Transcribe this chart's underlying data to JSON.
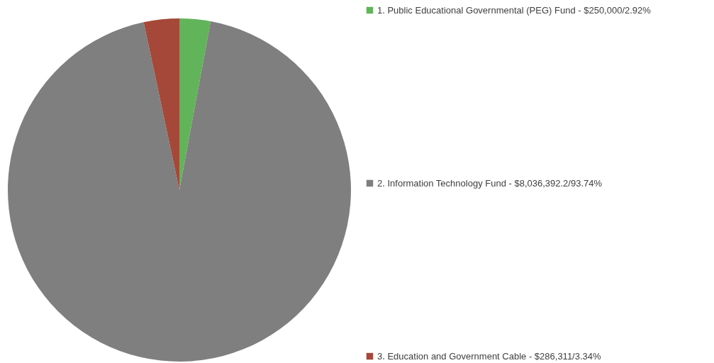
{
  "chart_data": {
    "type": "pie",
    "categories": [
      "1. Public Educational Governmental (PEG) Fund - $250,000/2.92%",
      "2. Information Technology Fund - $8,036,392.2/93.74%",
      "3. Education and Government Cable - $286,311/3.34%"
    ],
    "values": [
      2.92,
      93.74,
      3.34
    ],
    "colors": [
      "#62b45a",
      "#7f7f7f",
      "#a5483a"
    ],
    "legend": "right"
  }
}
